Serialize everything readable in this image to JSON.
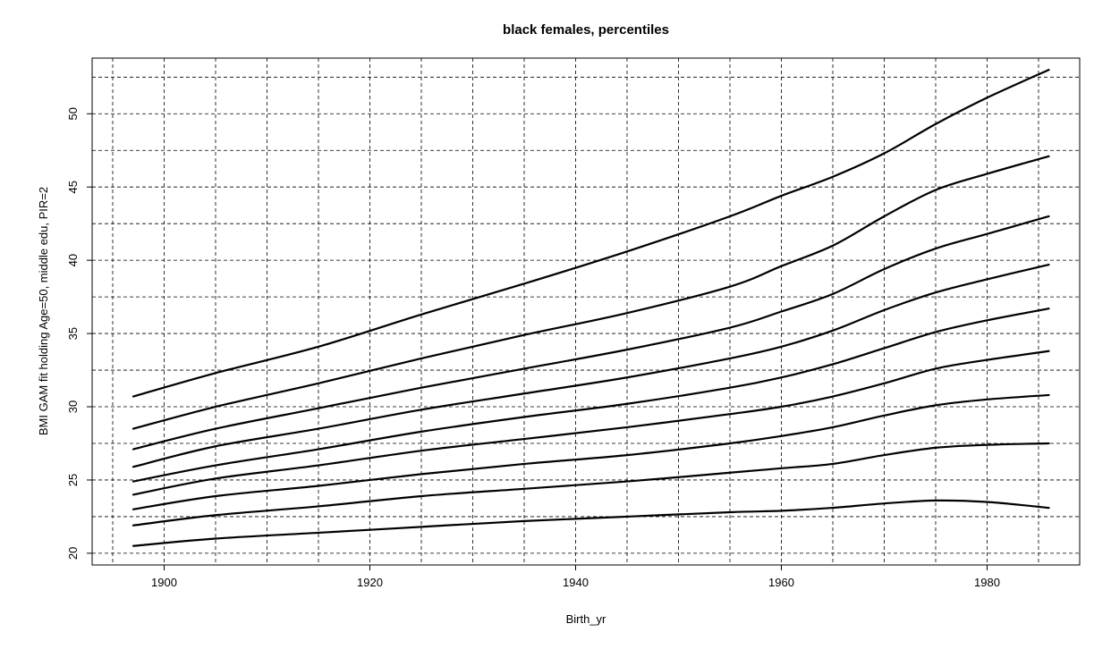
{
  "chart_data": {
    "type": "line",
    "title": "black females, percentiles",
    "xlabel": "Birth_yr",
    "ylabel": "BMI GAM fit holding Age=50, middle edu, PIR=2",
    "xlim": [
      1893,
      1989
    ],
    "ylim": [
      19.2,
      53.8
    ],
    "xticks": [
      1900,
      1920,
      1940,
      1960,
      1980
    ],
    "yticks": [
      20,
      25,
      30,
      35,
      40,
      45,
      50
    ],
    "xgrid": [
      1895,
      1900,
      1905,
      1910,
      1915,
      1920,
      1925,
      1930,
      1935,
      1940,
      1945,
      1950,
      1955,
      1960,
      1965,
      1970,
      1975,
      1980,
      1985
    ],
    "ygrid": [
      20,
      22.5,
      25,
      27.5,
      30,
      32.5,
      35,
      37.5,
      40,
      42.5,
      45,
      47.5,
      50,
      52.5
    ],
    "grid": true,
    "series": [
      {
        "x": [
          1897,
          1905,
          1915,
          1925,
          1935,
          1945,
          1955,
          1960,
          1965,
          1970,
          1975,
          1980,
          1986
        ],
        "values": [
          20.5,
          21.0,
          21.4,
          21.8,
          22.2,
          22.5,
          22.8,
          22.9,
          23.1,
          23.4,
          23.6,
          23.5,
          23.1
        ]
      },
      {
        "x": [
          1897,
          1905,
          1915,
          1925,
          1935,
          1945,
          1955,
          1960,
          1965,
          1970,
          1975,
          1980,
          1986
        ],
        "values": [
          21.9,
          22.6,
          23.2,
          23.9,
          24.4,
          24.9,
          25.5,
          25.8,
          26.1,
          26.7,
          27.2,
          27.4,
          27.5
        ]
      },
      {
        "x": [
          1897,
          1905,
          1915,
          1925,
          1935,
          1945,
          1955,
          1960,
          1965,
          1970,
          1975,
          1980,
          1986
        ],
        "values": [
          23.0,
          23.9,
          24.6,
          25.4,
          26.1,
          26.7,
          27.5,
          28.0,
          28.6,
          29.4,
          30.1,
          30.5,
          30.8
        ]
      },
      {
        "x": [
          1897,
          1905,
          1915,
          1925,
          1935,
          1945,
          1955,
          1960,
          1965,
          1970,
          1975,
          1980,
          1986
        ],
        "values": [
          24.0,
          25.1,
          26.0,
          27.0,
          27.8,
          28.6,
          29.5,
          30.0,
          30.7,
          31.6,
          32.6,
          33.2,
          33.8
        ]
      },
      {
        "x": [
          1897,
          1905,
          1915,
          1925,
          1935,
          1945,
          1955,
          1960,
          1965,
          1970,
          1975,
          1980,
          1986
        ],
        "values": [
          24.9,
          26.0,
          27.1,
          28.3,
          29.3,
          30.2,
          31.3,
          32.0,
          32.9,
          34.0,
          35.1,
          35.9,
          36.7
        ]
      },
      {
        "x": [
          1897,
          1905,
          1915,
          1925,
          1935,
          1945,
          1955,
          1960,
          1965,
          1970,
          1975,
          1980,
          1986
        ],
        "values": [
          25.9,
          27.3,
          28.5,
          29.8,
          30.9,
          32.0,
          33.3,
          34.1,
          35.2,
          36.6,
          37.8,
          38.7,
          39.7
        ]
      },
      {
        "x": [
          1897,
          1905,
          1915,
          1925,
          1935,
          1945,
          1955,
          1960,
          1965,
          1970,
          1975,
          1980,
          1986
        ],
        "values": [
          27.1,
          28.5,
          29.9,
          31.3,
          32.6,
          33.9,
          35.4,
          36.5,
          37.7,
          39.4,
          40.8,
          41.8,
          43.0
        ]
      },
      {
        "x": [
          1897,
          1905,
          1915,
          1925,
          1935,
          1945,
          1955,
          1960,
          1965,
          1970,
          1975,
          1980,
          1986
        ],
        "values": [
          28.5,
          30.0,
          31.6,
          33.3,
          34.9,
          36.4,
          38.2,
          39.6,
          41.0,
          43.0,
          44.8,
          45.9,
          47.1
        ]
      },
      {
        "x": [
          1897,
          1905,
          1915,
          1925,
          1935,
          1945,
          1955,
          1960,
          1965,
          1970,
          1975,
          1980,
          1986
        ],
        "values": [
          30.7,
          32.3,
          34.1,
          36.3,
          38.4,
          40.6,
          43.0,
          44.4,
          45.7,
          47.3,
          49.3,
          51.1,
          53.0
        ]
      }
    ]
  }
}
